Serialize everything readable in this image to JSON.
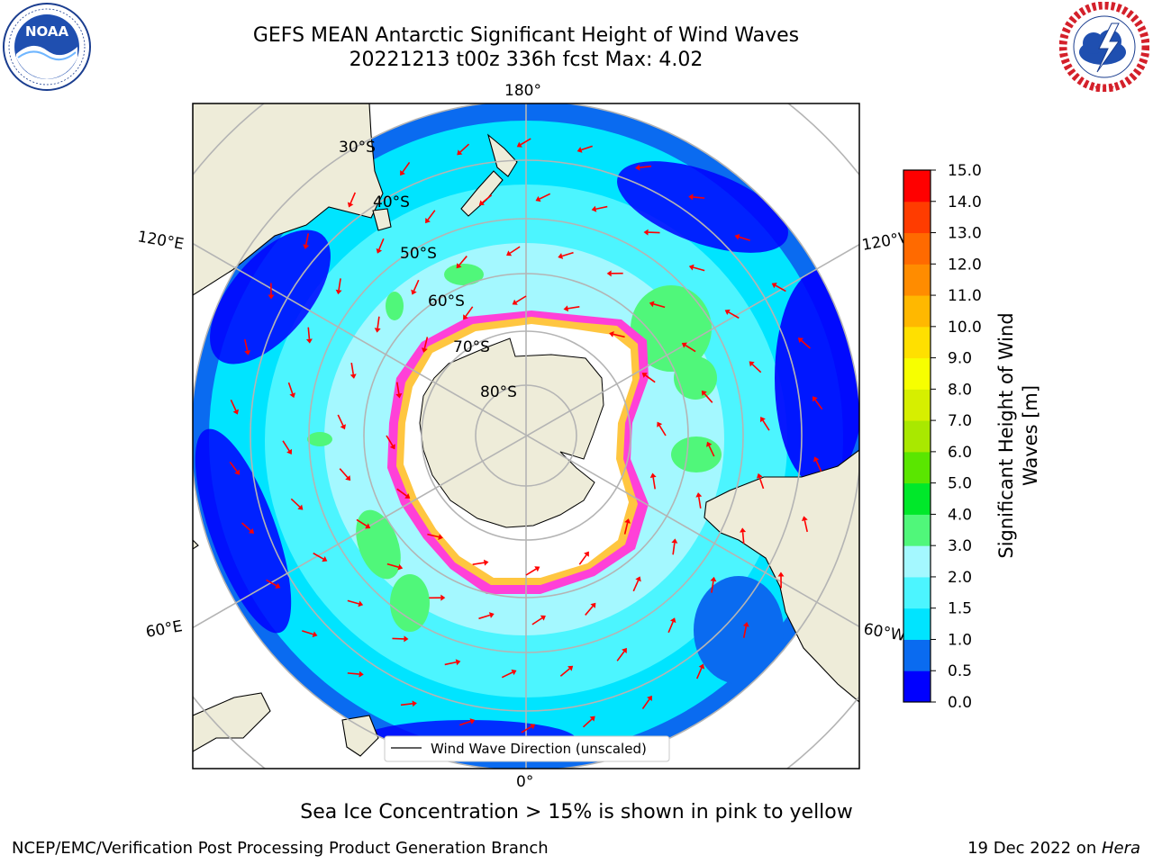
{
  "header": {
    "title_line1": "GEFS MEAN Antarctic Significant Height of Wind Waves",
    "title_line2": "20221213 t00z 336h fcst   Max: 4.02"
  },
  "logos": {
    "left": {
      "icon": "noaa-logo",
      "text": "NOAA",
      "ring_text": "NATIONAL OCEANIC AND ATMOSPHERIC ADMINISTRATION · U.S. DEPARTMENT OF COMMERCE"
    },
    "right": {
      "icon": "national-weather-service-logo",
      "ring_text": "NATIONAL WEATHER SERVICE"
    }
  },
  "map": {
    "projection": "south-polar-stereographic",
    "meridian_labels": [
      "180°",
      "120°E",
      "120°W",
      "60°E",
      "60°W",
      "0°"
    ],
    "latitude_labels": [
      "30°S",
      "40°S",
      "50°S",
      "60°S",
      "70°S",
      "80°S"
    ],
    "legend_text": "Wind Wave Direction (unscaled)",
    "colors": {
      "land": "#eeecd9",
      "sea_ice": "#ffffff",
      "grid": "#b4b4b4",
      "arrow": "#ff0000"
    }
  },
  "colorbar": {
    "label_line1": "Significant Height of Wind",
    "label_line2": "Waves [m]",
    "ticks": [
      "0.0",
      "0.5",
      "1.0",
      "1.5",
      "2.0",
      "3.0",
      "4.0",
      "5.0",
      "6.0",
      "7.0",
      "8.0",
      "9.0",
      "10.0",
      "11.0",
      "12.0",
      "13.0",
      "14.0",
      "15.0"
    ],
    "colors": [
      "#0000ff",
      "#0a6bf0",
      "#00e4ff",
      "#4cf5ff",
      "#a4f8ff",
      "#50f77a",
      "#00e82a",
      "#5ae600",
      "#a9e800",
      "#d6ef00",
      "#f7ff00",
      "#ffe000",
      "#ffb800",
      "#ff8c00",
      "#ff6a00",
      "#ff3c00",
      "#ff0000"
    ]
  },
  "chart_data": {
    "type": "heatmap",
    "title": "GEFS MEAN Antarctic Significant Height of Wind Waves",
    "subtitle": "20221213 t00z 336h fcst   Max: 4.02",
    "zlabel": "Significant Height of Wind Waves [m]",
    "z_levels": [
      0.0,
      0.5,
      1.0,
      1.5,
      2.0,
      3.0,
      4.0,
      5.0,
      6.0,
      7.0,
      8.0,
      9.0,
      10.0,
      11.0,
      12.0,
      13.0,
      14.0,
      15.0
    ],
    "max_value": 4.02,
    "legend": [
      "Wind Wave Direction (unscaled)"
    ]
  },
  "footer": {
    "note": "Sea Ice Concentration > 15% is shown in pink to yellow",
    "credit": "NCEP/EMC/Verification Post Processing Product Generation Branch",
    "date": "19 Dec 2022 on ",
    "machine": "Hera"
  }
}
